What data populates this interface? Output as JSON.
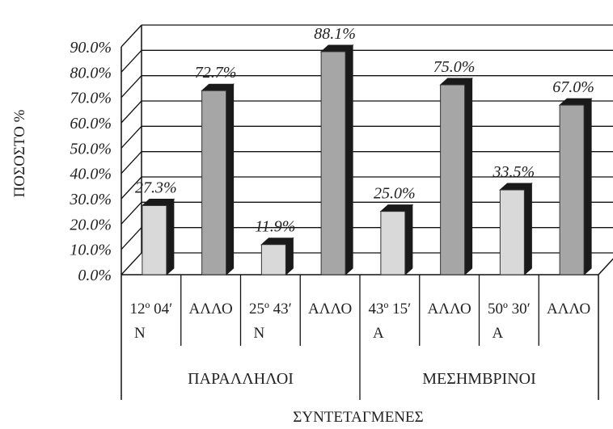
{
  "chart_data": {
    "type": "bar",
    "ylabel": "ΠΟΣΟΣΤΟ %",
    "xlabel": "ΣΥΝΤΕΤΑΓΜΕΝΕΣ",
    "ylim": [
      0,
      90
    ],
    "y_ticks": [
      "0.0%",
      "10.0%",
      "20.0%",
      "30.0%",
      "40.0%",
      "50.0%",
      "60.0%",
      "70.0%",
      "80.0%",
      "90.0%"
    ],
    "grid": true,
    "categories": [
      {
        "line1": "12º 04′",
        "line2": "N"
      },
      {
        "line1": "ΑΛΛΟ",
        "line2": ""
      },
      {
        "line1": "25º 43′",
        "line2": "N"
      },
      {
        "line1": "ΑΛΛΟ",
        "line2": ""
      },
      {
        "line1": "43º 15′",
        "line2": "A"
      },
      {
        "line1": "ΑΛΛΟ",
        "line2": ""
      },
      {
        "line1": "50º 30′",
        "line2": "A"
      },
      {
        "line1": "ΑΛΛΟ",
        "line2": ""
      }
    ],
    "values": [
      27.3,
      72.7,
      11.9,
      88.1,
      25.0,
      75.0,
      33.5,
      67.0
    ],
    "value_labels": [
      "27.3%",
      "72.7%",
      "11.9%",
      "88.1%",
      "25.0%",
      "75.0%",
      "33.5%",
      "67.0%"
    ],
    "groups": [
      {
        "label": "ΠΑΡΑΛΛΗΛΟΙ",
        "span": [
          0,
          3
        ]
      },
      {
        "label": "ΜΕΣΗΜΒΡΙΝΟΙ",
        "span": [
          4,
          7
        ]
      }
    ],
    "colors": {
      "light_bar": "#d9d9d9",
      "dark_bar": "#a6a6a6",
      "bar_side": "#1a1a1a",
      "grid": "#111111"
    }
  }
}
